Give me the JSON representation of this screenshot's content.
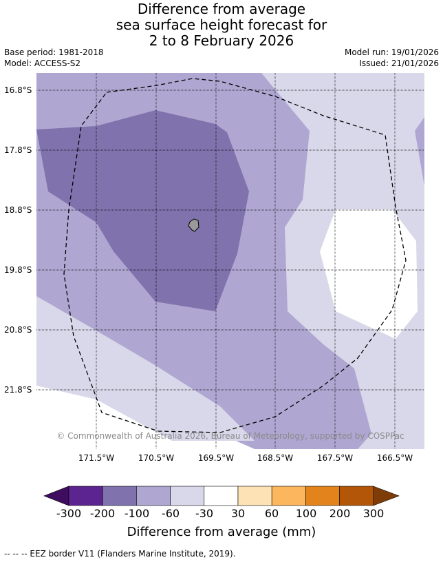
{
  "title": {
    "line1": "Difference from average",
    "line2": "sea surface height forecast for",
    "line3": "2 to 8 February 2026"
  },
  "meta": {
    "base_period": "Base period: 1981-2018",
    "model": "Model: ACCESS-S2",
    "model_run": "Model run: 19/01/2026",
    "issued": "Issued: 21/01/2026"
  },
  "map": {
    "lat_ticks": [
      "16.8°S",
      "17.8°S",
      "18.8°S",
      "19.8°S",
      "20.8°S",
      "21.8°S"
    ],
    "lon_ticks": [
      "171.5°W",
      "170.5°W",
      "169.5°W",
      "168.5°W",
      "167.5°W",
      "166.5°W"
    ],
    "copyright": "© Commonwealth of Australia 2026, Bureau of Meteorology, supported by COSPPac",
    "colors": {
      "-200_-100": "#7f72ad",
      "-100_-60": "#afa7d1",
      "-60_-30": "#d8d8ea",
      "-30_30": "#ffffff",
      "land": "#999999",
      "eez_border": "#000000"
    }
  },
  "colorbar": {
    "label": "Difference from average (mm)",
    "ticks": [
      "-300",
      "-200",
      "-100",
      "-60",
      "-30",
      "30",
      "60",
      "100",
      "200",
      "300"
    ],
    "colors": [
      "#3f0d60",
      "#5c2490",
      "#7f72ad",
      "#afa7d1",
      "#d8d8ea",
      "#ffffff",
      "#fde2b6",
      "#fbb65e",
      "#e2841b",
      "#b35607",
      "#7d3c08"
    ]
  },
  "footnote": "--  --  -- EEZ border V11 (Flanders Marine Institute, 2019)."
}
